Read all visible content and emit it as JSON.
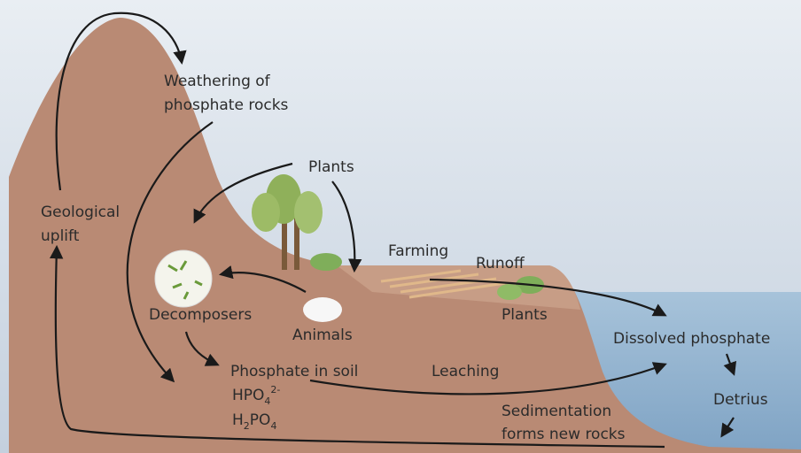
{
  "labels": [
    {
      "lines": [
        "Weathering of",
        "phosphate rocks"
      ]
    },
    {
      "lines": [
        "Plants"
      ]
    },
    {
      "lines": [
        "Geological",
        "uplift"
      ]
    },
    {
      "lines": [
        "Farming"
      ]
    },
    {
      "lines": [
        "Runoff"
      ]
    },
    {
      "lines": [
        "Decomposers"
      ]
    },
    {
      "lines": [
        "Animals"
      ]
    },
    {
      "lines": [
        "Plants"
      ]
    },
    {
      "lines": [
        "Dissolved phosphate"
      ]
    },
    {
      "lines": [
        "Phosphate in soil"
      ]
    },
    {
      "lines": [
        "Leaching"
      ]
    },
    {
      "lines": [
        "Sedimentation",
        "forms new rocks"
      ]
    },
    {
      "lines": [
        "Detrius"
      ]
    }
  ],
  "formulas": [
    [
      {
        "text": "HPO"
      },
      {
        "text": "4",
        "pos": "sub"
      },
      {
        "text": "2-",
        "pos": "sup"
      }
    ],
    [
      {
        "text": "H"
      },
      {
        "text": "2",
        "pos": "sub"
      },
      {
        "text": "PO"
      },
      {
        "text": "4",
        "pos": "sub"
      }
    ]
  ]
}
